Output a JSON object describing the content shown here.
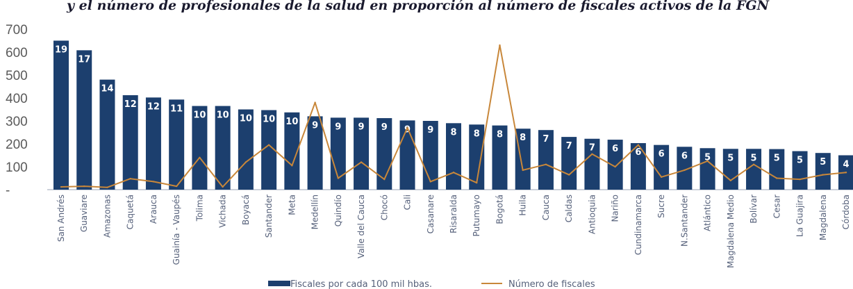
{
  "title": "y el número de profesionales de la salud en proporción al número de fiscales activos de la FGN",
  "chart_data": {
    "type": "bar",
    "categories": [
      "San Andrés",
      "Guaviare",
      "Amazonas",
      "Caquetá",
      "Arauca",
      "Guainía - Vaupés",
      "Tolima",
      "Vichada",
      "Boyacá",
      "Santander",
      "Meta",
      "Medellín",
      "Quindío",
      "Valle del Cauca",
      "Chocó",
      "Cali",
      "Casanare",
      "Risaralda",
      "Putumayo",
      "Bogotá",
      "Huila",
      "Cauca",
      "Caldas",
      "Antioquia",
      "Nariño",
      "Cundinamarca",
      "Sucre",
      "N.Santander",
      "Atlántico",
      "Magdalena Medio",
      "Bolívar",
      "Cesar",
      "La Guajira",
      "Magdalena",
      "Córdoba"
    ],
    "series": [
      {
        "name": "Fiscales por cada 100 mil hbas.",
        "kind": "bar",
        "color": "#1c3f6e",
        "values": [
          650,
          608,
          480,
          412,
          402,
          393,
          365,
          365,
          350,
          347,
          337,
          320,
          314,
          314,
          312,
          302,
          300,
          290,
          284,
          280,
          266,
          260,
          230,
          222,
          218,
          203,
          195,
          187,
          181,
          178,
          178,
          177,
          168,
          160,
          150
        ],
        "labels": [
          "19",
          "17",
          "14",
          "12",
          "12",
          "11",
          "10",
          "10",
          "10",
          "10",
          "10",
          "9",
          "9",
          "9",
          "9",
          "9",
          "9",
          "8",
          "8",
          "8",
          "8",
          "7",
          "7",
          "7",
          "6",
          "6",
          "6",
          "6",
          "5",
          "5",
          "5",
          "5",
          "5",
          "5",
          "4"
        ]
      },
      {
        "name": "Número de fiscales",
        "kind": "line",
        "color": "#c8873a",
        "values": [
          12,
          15,
          10,
          48,
          35,
          15,
          140,
          12,
          120,
          195,
          105,
          380,
          50,
          120,
          45,
          270,
          35,
          75,
          30,
          630,
          85,
          110,
          65,
          155,
          100,
          195,
          55,
          85,
          125,
          40,
          110,
          50,
          45,
          65,
          75
        ]
      }
    ],
    "ylim": [
      0,
      700
    ],
    "yticks": [
      "-",
      "100",
      "200",
      "300",
      "400",
      "500",
      "600",
      "700"
    ],
    "legend_position": "bottom",
    "grid": false
  }
}
